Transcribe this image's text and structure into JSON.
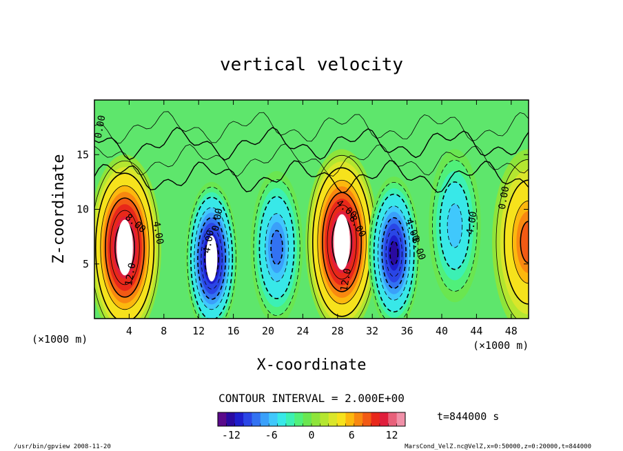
{
  "chart_data": {
    "type": "contour",
    "title": "vertical velocity",
    "xlabel": "X-coordinate",
    "ylabel": "Z-coordinate",
    "x_unit": "(×1000 m)",
    "y_unit": "(×1000 m)",
    "xlim": [
      0,
      50
    ],
    "ylim": [
      0,
      20
    ],
    "x_ticks": [
      4,
      8,
      12,
      16,
      20,
      24,
      28,
      32,
      36,
      40,
      44,
      48
    ],
    "y_ticks": [
      5,
      10,
      15
    ],
    "contour_interval": "CONTOUR INTERVAL = 2.000E+00",
    "time": "t=844000 s",
    "colorbar": {
      "ticks": [
        -12,
        -6,
        0,
        6,
        12
      ],
      "range": [
        -14,
        14
      ],
      "colors": [
        "#5a0a8a",
        "#2a0aa0",
        "#1e1ecc",
        "#2a46e6",
        "#3272f2",
        "#3aa0fa",
        "#40c8fc",
        "#38e8e8",
        "#3cf0b4",
        "#50f07a",
        "#6ae650",
        "#8ee43a",
        "#b4e630",
        "#dae62a",
        "#f6e21c",
        "#fcb80e",
        "#f88810",
        "#f25a14",
        "#e8281a",
        "#e01e3c",
        "#e8607a",
        "#f090a8"
      ]
    },
    "updrafts": [
      {
        "x": 3.5,
        "z": 6.5,
        "peak": 14
      },
      {
        "x": 28.5,
        "z": 7.0,
        "peak": 14
      },
      {
        "x": 50,
        "z": 7.0,
        "peak": 8
      }
    ],
    "downdrafts": [
      {
        "x": 13.5,
        "z": 5.5,
        "peak": -14
      },
      {
        "x": 21.0,
        "z": 6.5,
        "peak": -8
      },
      {
        "x": 34.5,
        "z": 6.0,
        "peak": -12
      },
      {
        "x": 41.5,
        "z": 8.5,
        "peak": -6
      }
    ],
    "contour_labels": [
      {
        "text": "0.00",
        "x": 1.0,
        "z": 17.5,
        "angle": -80
      },
      {
        "text": "8.00",
        "x": 4.5,
        "z": 8.5,
        "angle": 40
      },
      {
        "text": "4.00",
        "x": 7.0,
        "z": 7.8,
        "angle": 80
      },
      {
        "text": "12.0",
        "x": 4.5,
        "z": 4.0,
        "angle": -80
      },
      {
        "text": "0.00",
        "x": 14.5,
        "z": 9.0,
        "angle": -80
      },
      {
        "text": "4.00",
        "x": 13.5,
        "z": 7.0,
        "angle": -80
      },
      {
        "text": "4.00",
        "x": 28.8,
        "z": 9.8,
        "angle": 40
      },
      {
        "text": "8.00",
        "x": 30.0,
        "z": 8.3,
        "angle": 60
      },
      {
        "text": "12.0",
        "x": 29.3,
        "z": 3.5,
        "angle": -80
      },
      {
        "text": "4.00",
        "x": 36.3,
        "z": 8.0,
        "angle": 70
      },
      {
        "text": "8.00",
        "x": 37.0,
        "z": 6.3,
        "angle": 70
      },
      {
        "text": "4.00",
        "x": 43.8,
        "z": 8.7,
        "angle": -80
      },
      {
        "text": "0.00",
        "x": 47.5,
        "z": 11.0,
        "angle": -80
      }
    ]
  },
  "footer": {
    "left": "/usr/bin/gpview  2008-11-20",
    "right": "MarsCond_VelZ.nc@VelZ,x=0:50000,z=0:20000,t=844000"
  }
}
